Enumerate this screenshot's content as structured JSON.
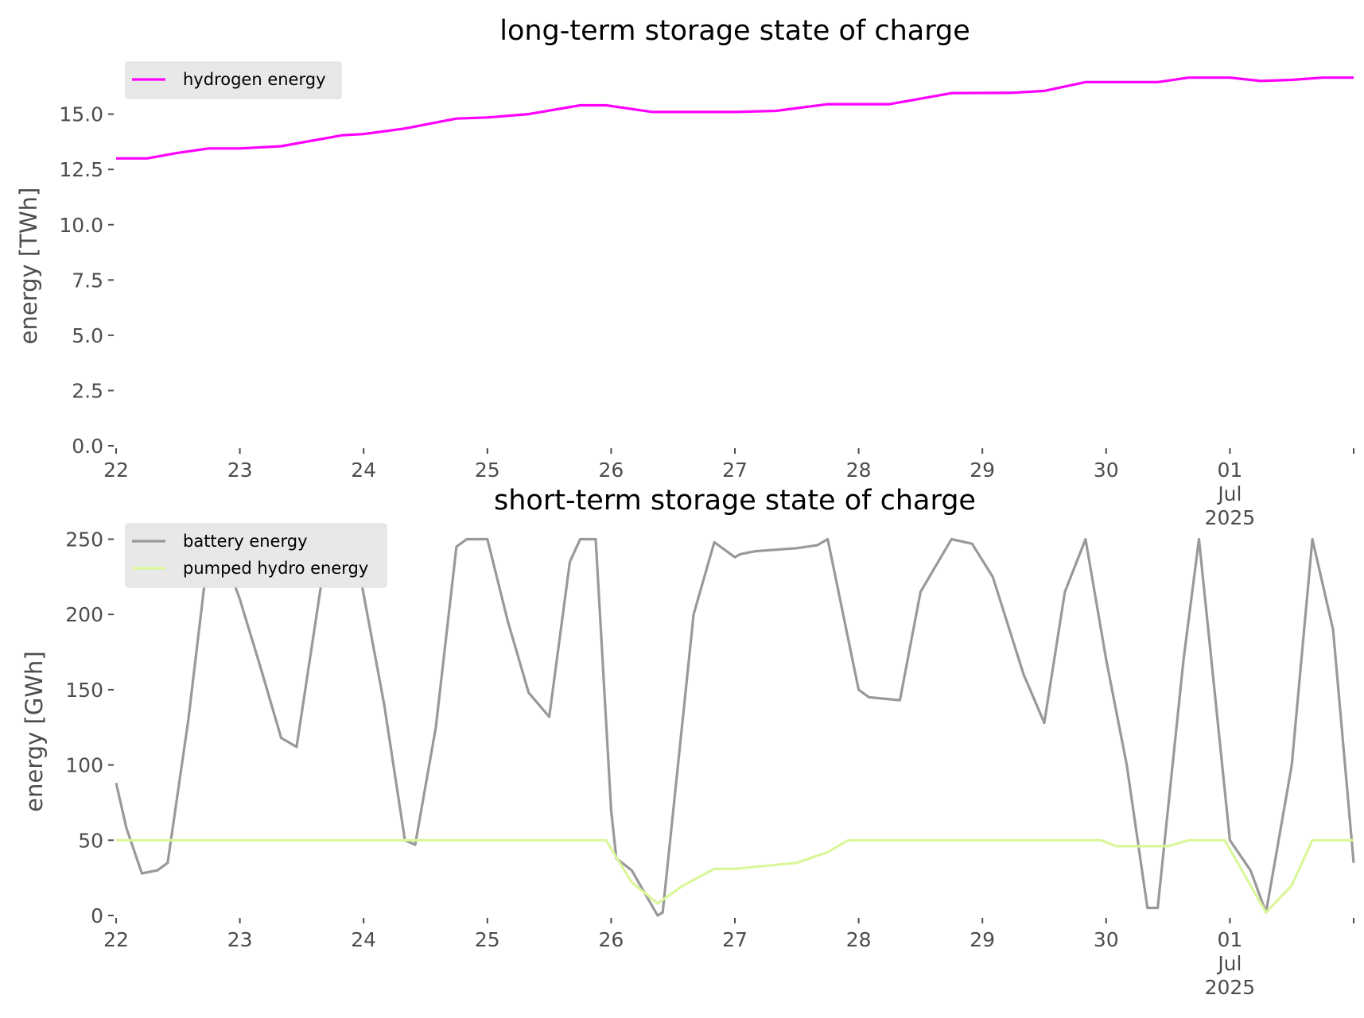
{
  "chart_data": [
    {
      "type": "line",
      "title": "long-term storage state of charge",
      "xlabel": "",
      "ylabel": "energy [TWh]",
      "ylim": [
        0,
        17
      ],
      "xlim": [
        "2025-06-22",
        "2025-07-02"
      ],
      "x_ticks": [
        {
          "date": "2025-06-22",
          "label": "22"
        },
        {
          "date": "2025-06-23",
          "label": "23"
        },
        {
          "date": "2025-06-24",
          "label": "24"
        },
        {
          "date": "2025-06-25",
          "label": "25"
        },
        {
          "date": "2025-06-26",
          "label": "26"
        },
        {
          "date": "2025-06-27",
          "label": "27"
        },
        {
          "date": "2025-06-28",
          "label": "28"
        },
        {
          "date": "2025-06-29",
          "label": "29"
        },
        {
          "date": "2025-06-30",
          "label": "30"
        },
        {
          "date": "2025-07-01",
          "label": "01",
          "label2": "Jul",
          "label3": "2025"
        }
      ],
      "y_ticks": [
        "0.0",
        "2.5",
        "5.0",
        "7.5",
        "10.0",
        "12.5",
        "15.0"
      ],
      "grid": false,
      "legend_position": "top-left",
      "series": [
        {
          "name": "hydrogen energy",
          "color": "#ff00ff",
          "points": [
            [
              "2025-06-22 00:00",
              13.0
            ],
            [
              "2025-06-22 06:00",
              13.0
            ],
            [
              "2025-06-22 12:00",
              13.25
            ],
            [
              "2025-06-22 18:00",
              13.45
            ],
            [
              "2025-06-23 00:00",
              13.45
            ],
            [
              "2025-06-23 08:00",
              13.55
            ],
            [
              "2025-06-23 14:00",
              13.8
            ],
            [
              "2025-06-23 20:00",
              14.05
            ],
            [
              "2025-06-24 00:00",
              14.1
            ],
            [
              "2025-06-24 08:00",
              14.35
            ],
            [
              "2025-06-24 18:00",
              14.8
            ],
            [
              "2025-06-25 00:00",
              14.85
            ],
            [
              "2025-06-25 08:00",
              15.0
            ],
            [
              "2025-06-25 18:00",
              15.4
            ],
            [
              "2025-06-25 23:00",
              15.4
            ],
            [
              "2025-06-26 08:00",
              15.1
            ],
            [
              "2025-06-26 18:00",
              15.1
            ],
            [
              "2025-06-27 00:00",
              15.1
            ],
            [
              "2025-06-27 08:00",
              15.15
            ],
            [
              "2025-06-27 18:00",
              15.45
            ],
            [
              "2025-06-28 06:00",
              15.45
            ],
            [
              "2025-06-28 18:00",
              15.95
            ],
            [
              "2025-06-29 06:00",
              15.97
            ],
            [
              "2025-06-29 12:00",
              16.05
            ],
            [
              "2025-06-29 20:00",
              16.45
            ],
            [
              "2025-06-30 06:00",
              16.45
            ],
            [
              "2025-06-30 10:00",
              16.45
            ],
            [
              "2025-06-30 16:00",
              16.65
            ],
            [
              "2025-07-01 00:00",
              16.65
            ],
            [
              "2025-07-01 06:00",
              16.5
            ],
            [
              "2025-07-01 12:00",
              16.55
            ],
            [
              "2025-07-01 18:00",
              16.65
            ],
            [
              "2025-07-02 00:00",
              16.65
            ]
          ]
        }
      ]
    },
    {
      "type": "line",
      "title": "short-term storage state of charge",
      "xlabel": "",
      "ylabel": "energy [GWh]",
      "ylim": [
        0,
        255
      ],
      "xlim": [
        "2025-06-22",
        "2025-07-02"
      ],
      "x_ticks": [
        {
          "date": "2025-06-22",
          "label": "22"
        },
        {
          "date": "2025-06-23",
          "label": "23"
        },
        {
          "date": "2025-06-24",
          "label": "24"
        },
        {
          "date": "2025-06-25",
          "label": "25"
        },
        {
          "date": "2025-06-26",
          "label": "26"
        },
        {
          "date": "2025-06-27",
          "label": "27"
        },
        {
          "date": "2025-06-28",
          "label": "28"
        },
        {
          "date": "2025-06-29",
          "label": "29"
        },
        {
          "date": "2025-06-30",
          "label": "30"
        },
        {
          "date": "2025-07-01",
          "label": "01",
          "label2": "Jul",
          "label3": "2025"
        }
      ],
      "y_ticks": [
        "0",
        "50",
        "100",
        "150",
        "200",
        "250"
      ],
      "grid": false,
      "legend_position": "top-left",
      "series": [
        {
          "name": "battery energy",
          "color": "#999999",
          "points": [
            [
              "2025-06-22 00:00",
              88
            ],
            [
              "2025-06-22 02:00",
              58
            ],
            [
              "2025-06-22 05:00",
              28
            ],
            [
              "2025-06-22 08:00",
              30
            ],
            [
              "2025-06-22 10:00",
              35
            ],
            [
              "2025-06-22 14:00",
              130
            ],
            [
              "2025-06-22 18:00",
              245
            ],
            [
              "2025-06-22 20:00",
              248
            ],
            [
              "2025-06-23 00:00",
              210
            ],
            [
              "2025-06-23 04:00",
              165
            ],
            [
              "2025-06-23 08:00",
              118
            ],
            [
              "2025-06-23 11:00",
              112
            ],
            [
              "2025-06-23 16:00",
              225
            ],
            [
              "2025-06-23 18:00",
              250
            ],
            [
              "2025-06-23 22:00",
              250
            ],
            [
              "2025-06-24 04:00",
              140
            ],
            [
              "2025-06-24 08:00",
              50
            ],
            [
              "2025-06-24 10:00",
              47
            ],
            [
              "2025-06-24 14:00",
              125
            ],
            [
              "2025-06-24 18:00",
              245
            ],
            [
              "2025-06-24 20:00",
              250
            ],
            [
              "2025-06-25 00:00",
              250
            ],
            [
              "2025-06-25 04:00",
              195
            ],
            [
              "2025-06-25 08:00",
              148
            ],
            [
              "2025-06-25 12:00",
              132
            ],
            [
              "2025-06-25 16:00",
              235
            ],
            [
              "2025-06-25 18:00",
              250
            ],
            [
              "2025-06-25 21:00",
              250
            ],
            [
              "2025-06-26 00:00",
              70
            ],
            [
              "2025-06-26 01:00",
              38
            ],
            [
              "2025-06-26 04:00",
              30
            ],
            [
              "2025-06-26 06:00",
              18
            ],
            [
              "2025-06-26 09:00",
              0
            ],
            [
              "2025-06-26 10:00",
              2
            ],
            [
              "2025-06-26 16:00",
              200
            ],
            [
              "2025-06-26 20:00",
              248
            ],
            [
              "2025-06-27 00:00",
              238
            ],
            [
              "2025-06-27 01:00",
              240
            ],
            [
              "2025-06-27 04:00",
              242
            ],
            [
              "2025-06-27 12:00",
              244
            ],
            [
              "2025-06-27 16:00",
              246
            ],
            [
              "2025-06-27 18:00",
              250
            ],
            [
              "2025-06-28 00:00",
              150
            ],
            [
              "2025-06-28 02:00",
              145
            ],
            [
              "2025-06-28 08:00",
              143
            ],
            [
              "2025-06-28 12:00",
              215
            ],
            [
              "2025-06-28 18:00",
              250
            ],
            [
              "2025-06-28 22:00",
              247
            ],
            [
              "2025-06-29 02:00",
              225
            ],
            [
              "2025-06-29 08:00",
              160
            ],
            [
              "2025-06-29 12:00",
              128
            ],
            [
              "2025-06-29 16:00",
              215
            ],
            [
              "2025-06-29 20:00",
              250
            ],
            [
              "2025-06-30 00:00",
              170
            ],
            [
              "2025-06-30 04:00",
              100
            ],
            [
              "2025-06-30 08:00",
              5
            ],
            [
              "2025-06-30 10:00",
              5
            ],
            [
              "2025-06-30 15:00",
              170
            ],
            [
              "2025-06-30 18:00",
              250
            ],
            [
              "2025-07-01 00:00",
              50
            ],
            [
              "2025-07-01 04:00",
              30
            ],
            [
              "2025-07-01 07:00",
              2
            ],
            [
              "2025-07-01 12:00",
              100
            ],
            [
              "2025-07-01 16:00",
              250
            ],
            [
              "2025-07-01 20:00",
              190
            ],
            [
              "2025-07-02 00:00",
              35
            ]
          ]
        },
        {
          "name": "pumped hydro energy",
          "color": "#d9f79a",
          "points": [
            [
              "2025-06-22 00:00",
              50
            ],
            [
              "2025-06-25 23:00",
              50
            ],
            [
              "2025-06-26 04:00",
              22
            ],
            [
              "2025-06-26 09:00",
              8
            ],
            [
              "2025-06-26 14:00",
              20
            ],
            [
              "2025-06-26 20:00",
              31
            ],
            [
              "2025-06-27 00:00",
              31
            ],
            [
              "2025-06-27 12:00",
              35
            ],
            [
              "2025-06-27 18:00",
              42
            ],
            [
              "2025-06-27 22:00",
              50
            ],
            [
              "2025-06-29 23:00",
              50
            ],
            [
              "2025-06-30 02:00",
              46
            ],
            [
              "2025-06-30 12:00",
              46
            ],
            [
              "2025-06-30 16:00",
              50
            ],
            [
              "2025-06-30 23:00",
              50
            ],
            [
              "2025-07-01 04:00",
              20
            ],
            [
              "2025-07-01 07:00",
              2
            ],
            [
              "2025-07-01 12:00",
              20
            ],
            [
              "2025-07-01 16:00",
              50
            ],
            [
              "2025-07-02 00:00",
              50
            ]
          ]
        }
      ]
    }
  ]
}
